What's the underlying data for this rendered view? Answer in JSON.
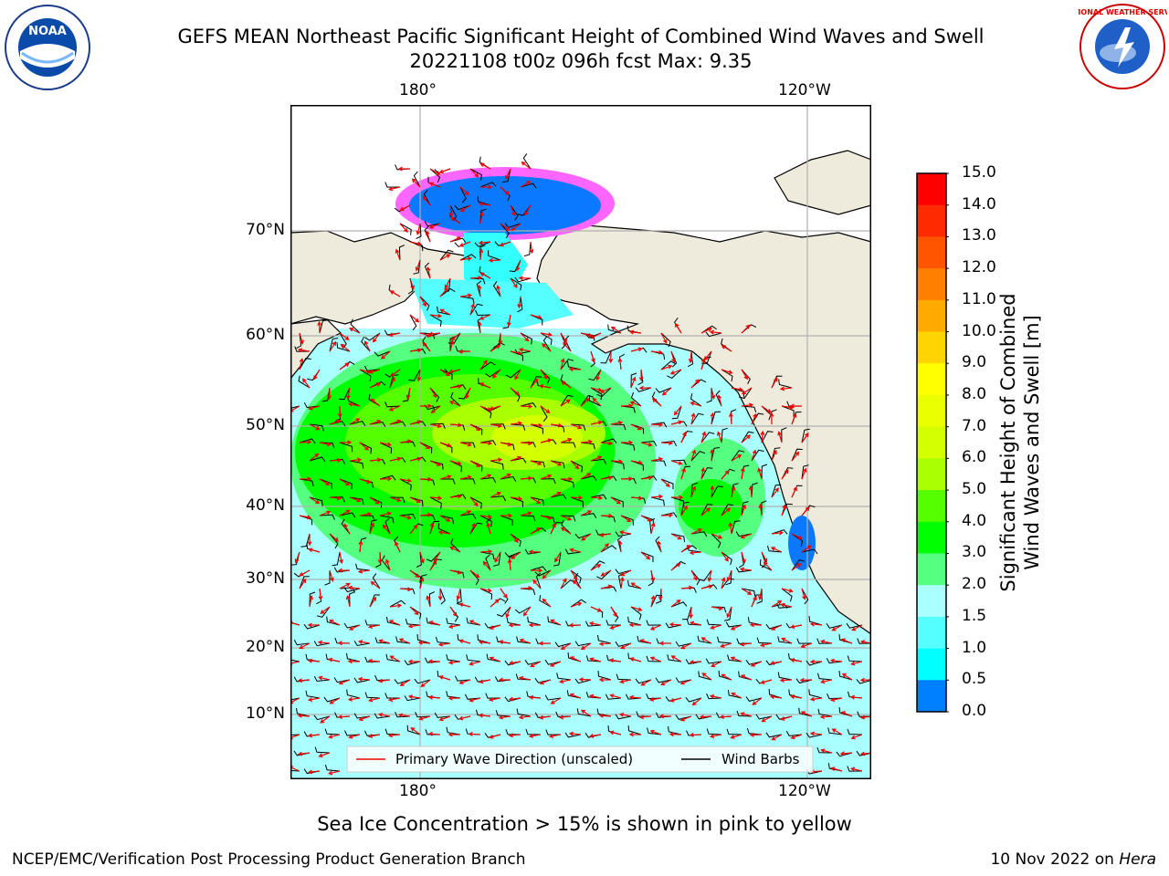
{
  "header": {
    "title_line1": "GEFS MEAN Northeast Pacific Significant Height of Combined Wind Waves and Swell",
    "title_line2": "20221108 t00z 096h fcst   Max: 9.35"
  },
  "map": {
    "lon_labels_top": [
      "180°",
      "120°W"
    ],
    "lon_labels_bottom": [
      "180°",
      "120°W"
    ],
    "lat_labels": [
      "70°N",
      "60°N",
      "50°N",
      "40°N",
      "30°N",
      "20°N",
      "10°N"
    ],
    "legend": {
      "wave_direction": "Primary Wave Direction (unscaled)",
      "wind_barbs": "Wind Barbs"
    }
  },
  "colorbar": {
    "label_line1": "Significant Height of Combined",
    "label_line2": "Wind Waves and Swell [m]",
    "ticks": [
      "15.0",
      "14.0",
      "13.0",
      "12.0",
      "11.0",
      "10.0",
      "9.0",
      "8.0",
      "7.0",
      "6.0",
      "5.0",
      "4.0",
      "3.0",
      "2.0",
      "1.5",
      "1.0",
      "0.5",
      "0.0"
    ],
    "colors": [
      "#ff0000",
      "#ff2a00",
      "#ff5500",
      "#ff7f00",
      "#ffaa00",
      "#ffd400",
      "#ffff00",
      "#eaff00",
      "#d4ff00",
      "#aaff00",
      "#55ff00",
      "#00ff00",
      "#55ff7f",
      "#aaffff",
      "#55ffff",
      "#00ffff",
      "#0080ff",
      "#0040ff",
      "#0000ff"
    ]
  },
  "notes": {
    "ice": "Sea Ice Concentration > 15% is shown in pink to yellow"
  },
  "footer": {
    "left": "NCEP/EMC/Verification Post Processing Product Generation Branch",
    "date": "10 Nov 2022 on ",
    "machine": "Hera"
  },
  "logos": {
    "noaa_text": "NOAA",
    "nws_text": "NATIONAL WEATHER SERVICE"
  }
}
